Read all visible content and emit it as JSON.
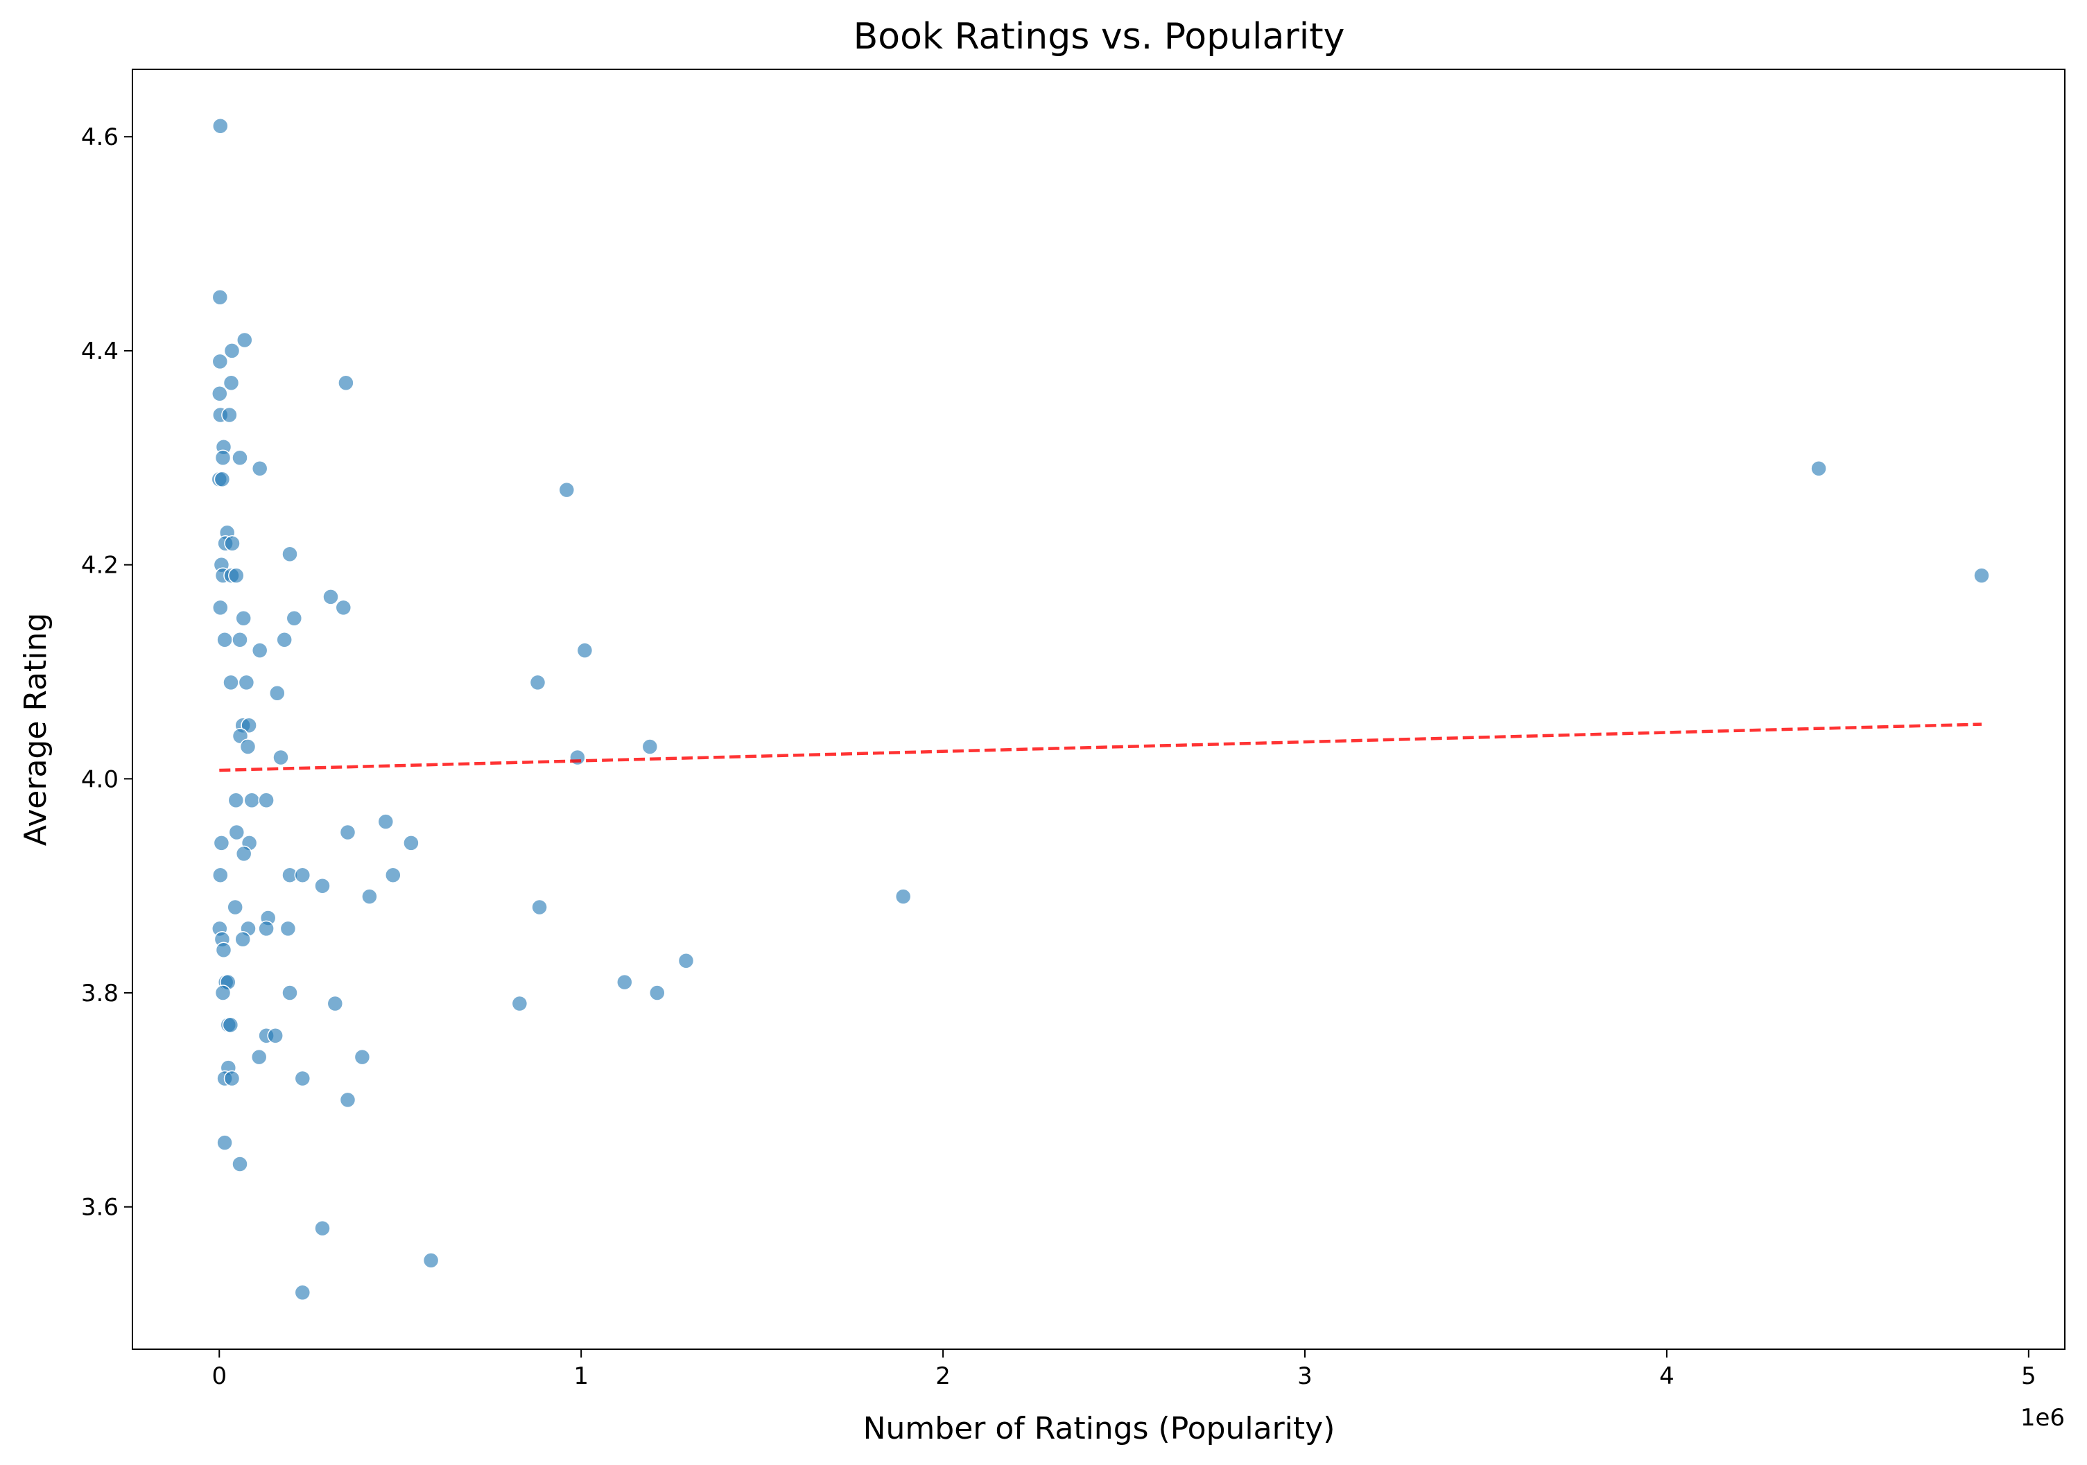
{
  "chart_data": {
    "type": "scatter",
    "title": "Book Ratings vs. Popularity",
    "xlabel": "Number of Ratings (Popularity)",
    "ylabel": "Average Rating",
    "x_offset_label": "1e6",
    "xlim": [
      -0.24,
      5.1
    ],
    "ylim": [
      3.467,
      4.663
    ],
    "x_ticks": [
      0,
      1,
      2,
      3,
      4,
      5
    ],
    "x_tick_labels": [
      "0",
      "1",
      "2",
      "3",
      "4",
      "5"
    ],
    "y_ticks": [
      3.6,
      3.8,
      4.0,
      4.2,
      4.4,
      4.6
    ],
    "y_tick_labels": [
      "3.6",
      "3.8",
      "4.0",
      "4.2",
      "4.4",
      "4.6"
    ],
    "grid": false,
    "colors": {
      "points": "#1f77b4",
      "trend": "#ff0000",
      "point_edge": "#ffffff"
    },
    "points": [
      [
        0.003,
        4.61
      ],
      [
        0.002,
        4.45
      ],
      [
        0.07,
        4.41
      ],
      [
        0.035,
        4.4
      ],
      [
        0.002,
        4.39
      ],
      [
        0.033,
        4.37
      ],
      [
        0.35,
        4.37
      ],
      [
        0.001,
        4.36
      ],
      [
        0.003,
        4.34
      ],
      [
        0.028,
        4.34
      ],
      [
        0.012,
        4.31
      ],
      [
        0.01,
        4.3
      ],
      [
        0.057,
        4.3
      ],
      [
        0.112,
        4.29
      ],
      [
        0.0,
        4.28
      ],
      [
        0.008,
        4.28
      ],
      [
        0.96,
        4.27
      ],
      [
        0.022,
        4.23
      ],
      [
        0.017,
        4.22
      ],
      [
        0.036,
        4.22
      ],
      [
        0.195,
        4.21
      ],
      [
        0.006,
        4.2
      ],
      [
        0.308,
        4.17
      ],
      [
        0.01,
        4.19
      ],
      [
        0.034,
        4.19
      ],
      [
        0.047,
        4.19
      ],
      [
        0.003,
        4.16
      ],
      [
        0.343,
        4.16
      ],
      [
        0.067,
        4.15
      ],
      [
        0.207,
        4.15
      ],
      [
        0.015,
        4.13
      ],
      [
        0.057,
        4.13
      ],
      [
        0.18,
        4.13
      ],
      [
        0.112,
        4.12
      ],
      [
        1.01,
        4.12
      ],
      [
        0.032,
        4.09
      ],
      [
        0.075,
        4.09
      ],
      [
        0.88,
        4.09
      ],
      [
        0.16,
        4.08
      ],
      [
        0.065,
        4.05
      ],
      [
        0.082,
        4.05
      ],
      [
        0.058,
        4.04
      ],
      [
        0.079,
        4.03
      ],
      [
        1.19,
        4.03
      ],
      [
        0.17,
        4.02
      ],
      [
        0.99,
        4.02
      ],
      [
        0.046,
        3.98
      ],
      [
        0.09,
        3.98
      ],
      [
        0.13,
        3.98
      ],
      [
        0.46,
        3.96
      ],
      [
        0.048,
        3.95
      ],
      [
        0.355,
        3.95
      ],
      [
        0.006,
        3.94
      ],
      [
        0.083,
        3.94
      ],
      [
        0.53,
        3.94
      ],
      [
        0.068,
        3.93
      ],
      [
        0.003,
        3.91
      ],
      [
        0.195,
        3.91
      ],
      [
        0.23,
        3.91
      ],
      [
        0.48,
        3.91
      ],
      [
        0.285,
        3.9
      ],
      [
        0.415,
        3.89
      ],
      [
        1.89,
        3.89
      ],
      [
        0.044,
        3.88
      ],
      [
        0.885,
        3.88
      ],
      [
        0.135,
        3.87
      ],
      [
        0.001,
        3.86
      ],
      [
        0.08,
        3.86
      ],
      [
        0.13,
        3.86
      ],
      [
        0.19,
        3.86
      ],
      [
        0.008,
        3.85
      ],
      [
        0.065,
        3.85
      ],
      [
        0.012,
        3.84
      ],
      [
        1.29,
        3.83
      ],
      [
        0.018,
        3.81
      ],
      [
        0.024,
        3.81
      ],
      [
        1.12,
        3.81
      ],
      [
        0.01,
        3.8
      ],
      [
        0.195,
        3.8
      ],
      [
        1.21,
        3.8
      ],
      [
        0.32,
        3.79
      ],
      [
        0.83,
        3.79
      ],
      [
        0.025,
        3.77
      ],
      [
        0.031,
        3.77
      ],
      [
        0.13,
        3.76
      ],
      [
        0.155,
        3.76
      ],
      [
        0.11,
        3.74
      ],
      [
        0.395,
        3.74
      ],
      [
        0.025,
        3.73
      ],
      [
        0.015,
        3.72
      ],
      [
        0.035,
        3.72
      ],
      [
        0.23,
        3.72
      ],
      [
        0.355,
        3.7
      ],
      [
        0.015,
        3.66
      ],
      [
        0.057,
        3.64
      ],
      [
        0.285,
        3.58
      ],
      [
        0.585,
        3.55
      ],
      [
        0.23,
        3.52
      ],
      [
        4.42,
        4.29
      ],
      [
        4.87,
        4.19
      ]
    ],
    "trend_line": {
      "x": [
        0.0,
        4.87
      ],
      "y": [
        4.008,
        4.051
      ],
      "style": "dashed"
    }
  }
}
